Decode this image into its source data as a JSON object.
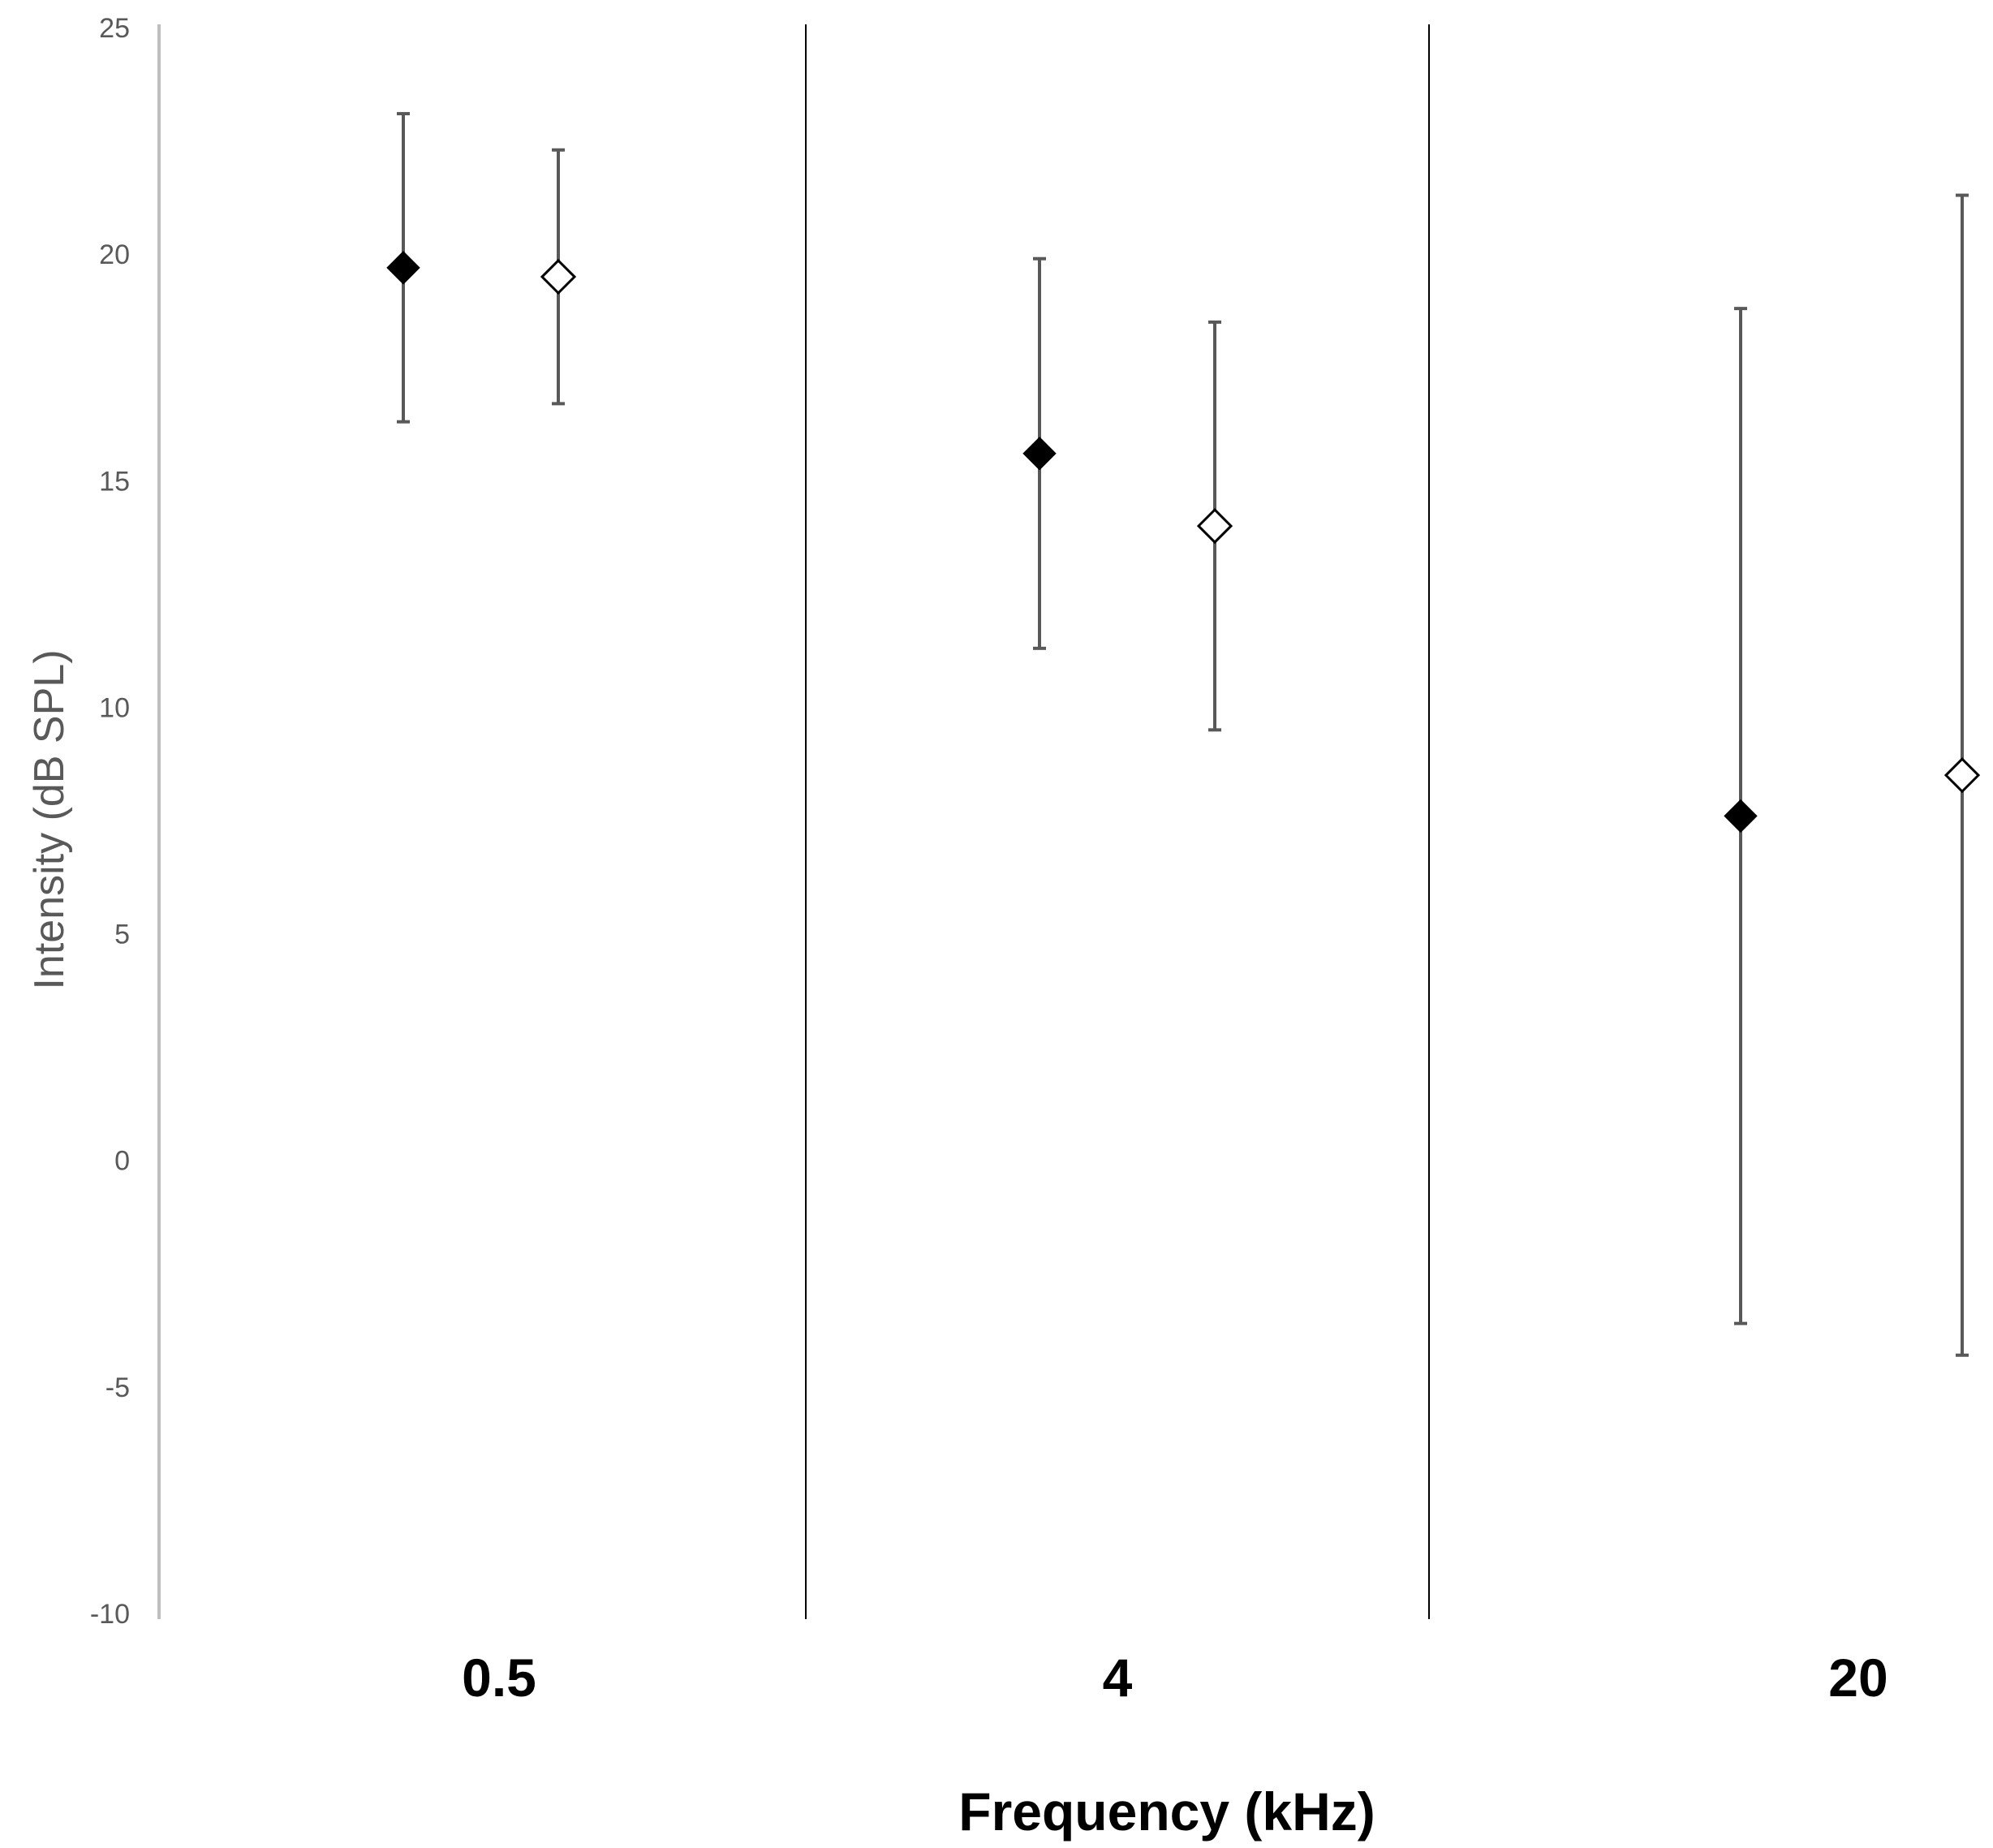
{
  "chart_data": {
    "type": "scatter",
    "title": "",
    "xlabel": "Frequency (kHz)",
    "ylabel": "Intensity (dB SPL)",
    "categories": [
      "0.5",
      "4",
      "20"
    ],
    "ylim": [
      -10,
      25
    ],
    "yticks": [
      25,
      20,
      15,
      10,
      5,
      0,
      -5,
      -10
    ],
    "grid": false,
    "legend": "none",
    "series": [
      {
        "marker": "filled-diamond",
        "color": "#000000",
        "values": [
          19.7,
          15.6,
          7.6
        ],
        "error_upper": [
          23.1,
          19.9,
          18.8
        ],
        "error_lower": [
          16.3,
          11.3,
          -3.6
        ]
      },
      {
        "marker": "open-diamond",
        "color": "#000000",
        "values": [
          19.5,
          14.0,
          8.5
        ],
        "error_upper": [
          22.3,
          18.5,
          21.3
        ],
        "error_lower": [
          16.7,
          9.5,
          -4.3
        ]
      }
    ],
    "error_bar_color": "#595959",
    "axis_color": "#bfbfbf",
    "separator_color": "#000000"
  }
}
